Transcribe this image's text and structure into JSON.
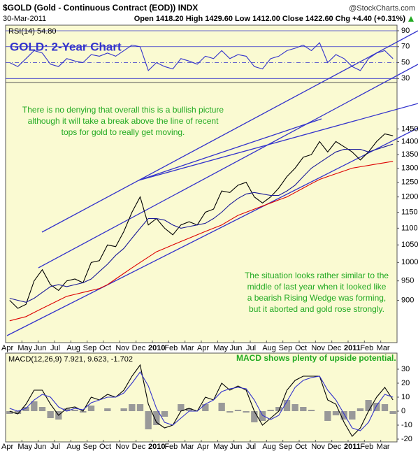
{
  "header": {
    "symbol": "$GOLD (Gold - Continuous Contract (EOD)) INDX",
    "source": "@StockCharts.com",
    "date": "30-Mar-2011",
    "quote": "Open 1418.20  High 1429.60  Low 1412.00  Close 1422.60  Chg +4.40 (+0.31%)",
    "title": "GOLD: 2-Year Chart"
  },
  "chart_data": [
    {
      "type": "line",
      "legend_text": "RSI(14) 54.80",
      "categories": [
        "Apr",
        null,
        "May",
        null,
        "Jun",
        null,
        "Jul",
        null,
        "Aug",
        null,
        "Sep",
        null,
        "Oct",
        null,
        "Nov",
        null,
        "Dec",
        null,
        "2010",
        null,
        "Feb",
        null,
        "Mar",
        null,
        "Apr",
        null,
        "May",
        null,
        "Jun",
        null,
        "Jul",
        null,
        "Aug",
        null,
        "Sep",
        null,
        "Oct",
        null,
        "Nov",
        null,
        "Dec",
        null,
        "2011",
        null,
        "Feb",
        null,
        "Mar",
        null
      ],
      "series": [
        {
          "color": "#3333cc",
          "values": [
            50,
            45,
            55,
            65,
            62,
            48,
            45,
            55,
            52,
            50,
            60,
            58,
            62,
            58,
            65,
            72,
            70,
            40,
            50,
            45,
            42,
            55,
            52,
            48,
            58,
            55,
            65,
            55,
            60,
            58,
            45,
            42,
            55,
            58,
            65,
            68,
            72,
            65,
            75,
            50,
            60,
            55,
            45,
            40,
            55,
            62,
            65,
            55
          ]
        }
      ],
      "ylim": [
        25,
        97
      ],
      "yticks": [
        30,
        50,
        70,
        90
      ],
      "grid": true
    },
    {
      "type": "line",
      "log": true,
      "annotations": [
        [
          "There is no denying that overall this is a bullish picture",
          "although it will  take a break above the line of recent",
          "tops for gold to really get moving."
        ],
        [
          "The situation looks rather similar to the",
          "middle of last year when it looked like",
          "a bearish Rising Wedge was forming,",
          "but it aborted and gold rose strongly."
        ]
      ],
      "categories": [
        "Apr",
        null,
        "May",
        null,
        "Jun",
        null,
        "Jul",
        null,
        "Aug",
        null,
        "Sep",
        null,
        "Oct",
        null,
        "Nov",
        null,
        "Dec",
        null,
        "2010",
        null,
        "Feb",
        null,
        "Mar",
        null,
        "Apr",
        null,
        "May",
        null,
        "Jun",
        null,
        "Jul",
        null,
        "Aug",
        null,
        "Sep",
        null,
        "Oct",
        null,
        "Nov",
        null,
        "Dec",
        null,
        "2011",
        null,
        "Feb",
        null,
        "Mar",
        null
      ],
      "series": [
        {
          "color": "#000000",
          "values": [
            900,
            880,
            890,
            950,
            980,
            940,
            925,
            950,
            955,
            945,
            1000,
            1005,
            1050,
            1045,
            1090,
            1150,
            1200,
            1110,
            1130,
            1100,
            1080,
            1110,
            1120,
            1110,
            1150,
            1160,
            1220,
            1215,
            1240,
            1250,
            1200,
            1180,
            1200,
            1230,
            1270,
            1300,
            1340,
            1350,
            1400,
            1360,
            1400,
            1380,
            1360,
            1330,
            1360,
            1400,
            1430,
            1423
          ]
        },
        {
          "color": "#1a1a99",
          "values": [
            905,
            900,
            895,
            905,
            920,
            935,
            940,
            935,
            940,
            945,
            955,
            975,
            995,
            1020,
            1040,
            1070,
            1100,
            1130,
            1130,
            1125,
            1110,
            1100,
            1105,
            1110,
            1115,
            1130,
            1150,
            1175,
            1195,
            1210,
            1215,
            1210,
            1205,
            1205,
            1220,
            1240,
            1270,
            1300,
            1320,
            1340,
            1360,
            1370,
            1370,
            1370,
            1360,
            1370,
            1380,
            1390
          ]
        },
        {
          "color": "#dd0000",
          "values": [
            850,
            855,
            860,
            870,
            880,
            890,
            900,
            910,
            915,
            920,
            925,
            930,
            940,
            955,
            970,
            985,
            1000,
            1015,
            1030,
            1040,
            1050,
            1060,
            1070,
            1080,
            1090,
            1100,
            1110,
            1125,
            1140,
            1150,
            1160,
            1170,
            1180,
            1190,
            1200,
            1215,
            1230,
            1245,
            1260,
            1270,
            1280,
            1290,
            1300,
            1305,
            1310,
            1315,
            1320,
            1325
          ]
        }
      ],
      "ylim": [
        800,
        1650
      ],
      "yticks": [
        900,
        950,
        1000,
        1050,
        1100,
        1150,
        1200,
        1250,
        1300,
        1350,
        1400,
        1450
      ]
    },
    {
      "type": "line",
      "legend_text": "MACD(12,26,9) 7.921, 9.623, -1.702",
      "note": "MACD shows plenty of upside potential.",
      "categories": [
        "Apr",
        null,
        "May",
        null,
        "Jun",
        null,
        "Jul",
        null,
        "Aug",
        null,
        "Sep",
        null,
        "Oct",
        null,
        "Nov",
        null,
        "Dec",
        null,
        "2010",
        null,
        "Feb",
        null,
        "Mar",
        null,
        "Apr",
        null,
        "May",
        null,
        "Jun",
        null,
        "Jul",
        null,
        "Aug",
        null,
        "Sep",
        null,
        "Oct",
        null,
        "Nov",
        null,
        "Dec",
        null,
        "2011",
        null,
        "Feb",
        null,
        "Mar",
        null
      ],
      "series": [
        {
          "type": "bar",
          "color": "#999999",
          "values": [
            -2,
            -2,
            3,
            7,
            3,
            -5,
            -6,
            2,
            1,
            -1,
            4,
            0,
            2,
            0,
            2,
            5,
            5,
            -13,
            -10,
            -4,
            0,
            5,
            2,
            0,
            5,
            0,
            6,
            -1,
            1,
            -1,
            -8,
            -7,
            1,
            3,
            8,
            5,
            3,
            1,
            0,
            -7,
            -3,
            -6,
            -6,
            2,
            8,
            6,
            5,
            -2
          ]
        },
        {
          "color": "#000000",
          "values": [
            0,
            -2,
            5,
            15,
            15,
            5,
            -3,
            2,
            3,
            0,
            10,
            8,
            12,
            10,
            15,
            25,
            33,
            5,
            -8,
            -12,
            -10,
            0,
            2,
            0,
            10,
            8,
            20,
            15,
            18,
            15,
            0,
            -10,
            -5,
            0,
            15,
            22,
            25,
            25,
            25,
            8,
            5,
            -8,
            -18,
            -12,
            0,
            10,
            17,
            8
          ]
        },
        {
          "color": "#3333cc",
          "values": [
            2,
            0,
            2,
            8,
            12,
            10,
            3,
            0,
            2,
            1,
            6,
            8,
            10,
            10,
            13,
            20,
            28,
            18,
            2,
            -8,
            -10,
            -5,
            0,
            0,
            5,
            8,
            14,
            16,
            17,
            16,
            8,
            -3,
            -6,
            -3,
            7,
            17,
            22,
            24,
            25,
            15,
            8,
            -2,
            -12,
            -14,
            -8,
            4,
            12,
            10
          ]
        }
      ],
      "ylim": [
        -22,
        41.5
      ],
      "yticks": [
        -20,
        -10,
        0,
        10,
        20,
        30
      ]
    }
  ]
}
